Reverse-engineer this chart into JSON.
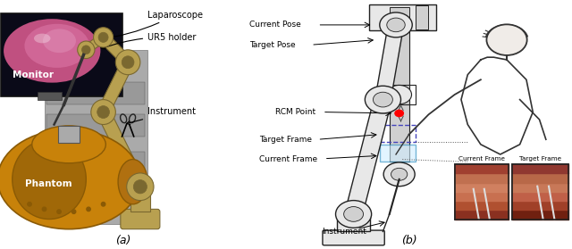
{
  "fig_width": 6.4,
  "fig_height": 2.79,
  "dpi": 100,
  "background_color": "#ffffff",
  "panel_a_label": "(a)",
  "panel_b_label": "(b)",
  "annotations_a": [
    {
      "text": "Laparoscope",
      "xt": 0.62,
      "yt": 0.93,
      "xa": 0.52,
      "ya": 0.82,
      "fontsize": 7
    },
    {
      "text": "UR5 holder",
      "xt": 0.62,
      "yt": 0.82,
      "xa": 0.52,
      "ya": 0.75,
      "fontsize": 7
    },
    {
      "text": "Monitor",
      "xt": 0.05,
      "yt": 0.68,
      "fontsize": 7.5,
      "color": "white",
      "bold": true
    },
    {
      "text": "Instrument",
      "xt": 0.6,
      "yt": 0.52,
      "xa": 0.46,
      "ya": 0.46,
      "fontsize": 7
    },
    {
      "text": "Phantom",
      "xt": 0.1,
      "yt": 0.26,
      "fontsize": 7.5,
      "color": "white",
      "bold": true
    }
  ],
  "annotations_b": [
    {
      "text": "Current Pose",
      "xt": 0.02,
      "yt": 0.9,
      "xa": 0.35,
      "ya": 0.9,
      "fontsize": 6.5
    },
    {
      "text": "Target Pose",
      "xt": 0.02,
      "yt": 0.82,
      "xa": 0.35,
      "ya": 0.82,
      "fontsize": 6.5
    },
    {
      "text": "RCM Point",
      "xt": 0.12,
      "yt": 0.56,
      "xa": 0.38,
      "ya": 0.55,
      "fontsize": 6.5
    },
    {
      "text": "Target Frame",
      "xt": 0.05,
      "yt": 0.44,
      "xa": 0.35,
      "ya": 0.44,
      "fontsize": 6.5
    },
    {
      "text": "Current Frame",
      "xt": 0.05,
      "yt": 0.36,
      "xa": 0.35,
      "ya": 0.36,
      "fontsize": 6.5
    },
    {
      "text": "Instrument",
      "xt": 0.3,
      "yt": 0.08,
      "xa": 0.4,
      "ya": 0.12,
      "fontsize": 6.5
    }
  ],
  "monitor_bg": "#0a0a18",
  "monitor_display": "#d060a0",
  "phantom_color": "#c8820a",
  "phantom_edge": "#8a5a05",
  "robot_arm_color": "#b8a050",
  "robot_arm_edge": "#7a6830",
  "rack_color": "#aaaaaa",
  "inset_tissue_color": "#c07055",
  "inset_bg": "#181010"
}
